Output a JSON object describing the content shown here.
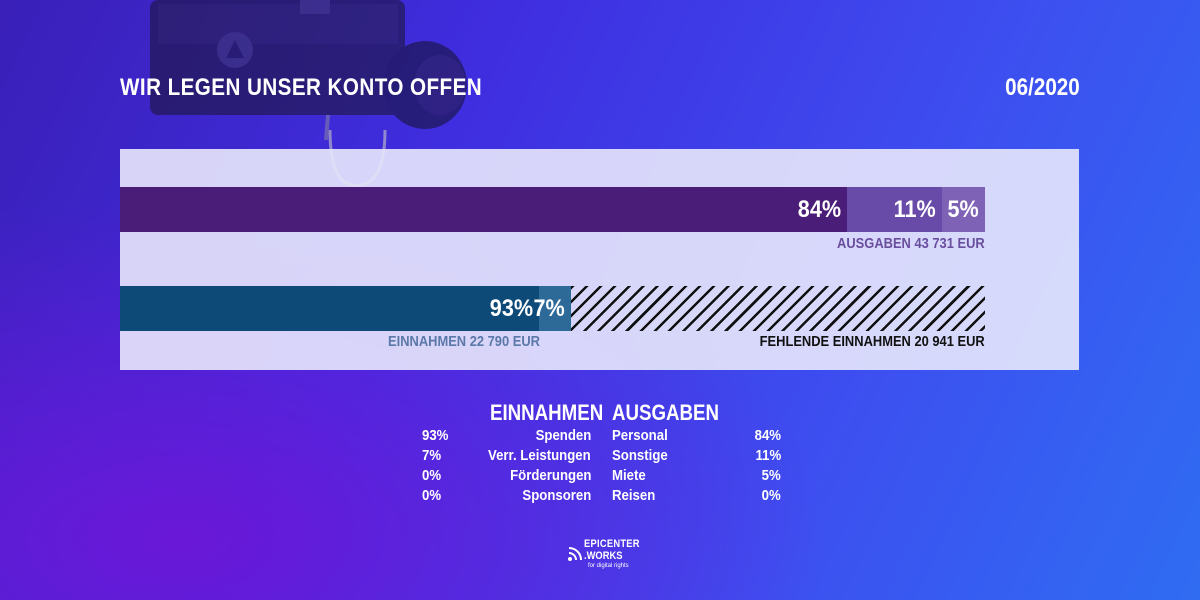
{
  "header": {
    "title": "WIR LEGEN UNSER KONTO OFFEN",
    "date": "06/2020"
  },
  "chart_data": {
    "type": "bar",
    "stacked": true,
    "orientation": "horizontal",
    "total_reference": 43731,
    "bars": [
      {
        "name": "AUSGABEN",
        "caption": "AUSGABEN 43 731 EUR",
        "total": 43731,
        "segments": [
          {
            "label": "84%",
            "value": 84,
            "color": "#4a1e78"
          },
          {
            "label": "11%",
            "value": 11,
            "color": "#684aa8"
          },
          {
            "label": "5%",
            "value": 5,
            "color": "#7e62b6"
          }
        ]
      },
      {
        "name": "EINNAHMEN",
        "caption": "EINNAHMEN 22 790 EUR",
        "total": 22790,
        "segments": [
          {
            "label": "93%",
            "value": 93,
            "color": "#0e4a78"
          },
          {
            "label": "7%",
            "value": 7,
            "color": "#2e6a98"
          }
        ],
        "missing": {
          "caption": "FEHLENDE EINNAHMEN 20 941 EUR",
          "amount": 20941
        }
      }
    ],
    "colors": {
      "ausgaben_caption": "#6a4e9e",
      "einnahmen_caption": "#5a78a8"
    }
  },
  "legend": {
    "einnahmen": {
      "heading": "EINNAHMEN",
      "rows": [
        {
          "percent": "93%",
          "label": "Spenden"
        },
        {
          "percent": "7%",
          "label": "Verr. Leistungen"
        },
        {
          "percent": "0%",
          "label": "Förderungen"
        },
        {
          "percent": "0%",
          "label": "Sponsoren"
        }
      ]
    },
    "ausgaben": {
      "heading": "AUSGABEN",
      "rows": [
        {
          "label": "Personal",
          "percent": "84%"
        },
        {
          "label": "Sonstige",
          "percent": "11%"
        },
        {
          "label": "Miete",
          "percent": "5%"
        },
        {
          "label": "Reisen",
          "percent": "0%"
        }
      ]
    }
  },
  "logo": {
    "line1": "EPICENTER",
    "line2": ".WORKS",
    "tagline": "for digital rights"
  }
}
